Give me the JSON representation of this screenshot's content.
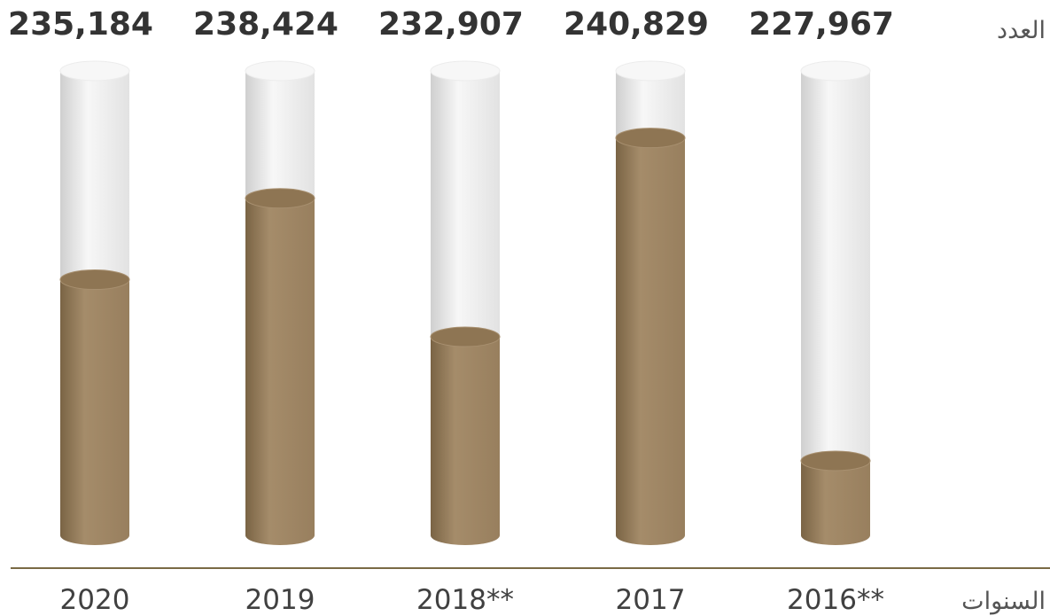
{
  "chart_data": {
    "type": "bar",
    "style": "cylinder",
    "categories": [
      "2016**",
      "2017",
      "2018**",
      "2019",
      "2020"
    ],
    "values": [
      227967,
      240829,
      232907,
      238424,
      235184
    ],
    "value_labels": [
      "227,967",
      "240,829",
      "232,907",
      "238,424",
      "235,184"
    ],
    "ylabel": "العدد",
    "xlabel": "السنوات",
    "ylim": [
      225000,
      243500
    ],
    "category_order": "right-to-left",
    "grid": false,
    "colors": {
      "fill": "#987f5e",
      "fill_dark": "#7a6445",
      "fill_light": "#a58c6a",
      "fill_top": "#8e7553",
      "empty": "#e2e2e2",
      "empty_edge": "#cfcfcf",
      "empty_top": "#f7f7f7",
      "axis": "#7a6a45"
    }
  }
}
